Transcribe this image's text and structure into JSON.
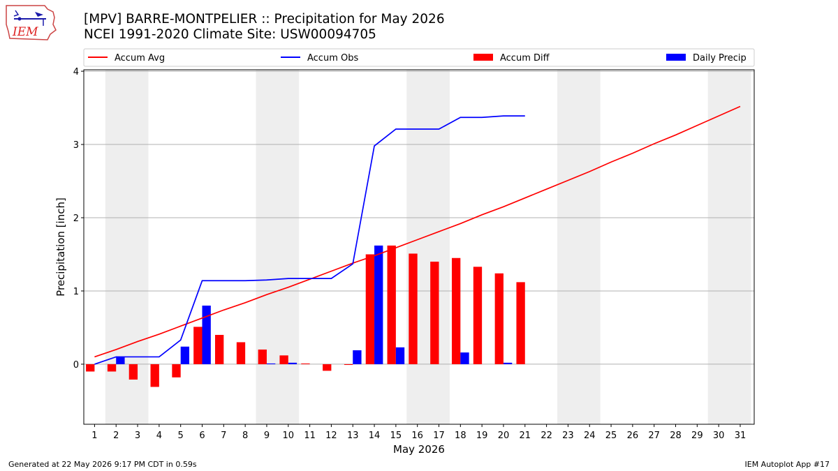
{
  "header": {
    "title": "[MPV] BARRE-MONTPELIER :: Precipitation for May 2026",
    "subtitle": "NCEI 1991-2020 Climate Site: USW00094705"
  },
  "logo": {
    "text": "IEM",
    "icon": "iem-logo"
  },
  "footer": {
    "left": "Generated at 22 May 2026 9:17 PM CDT in 0.59s",
    "right": "IEM Autoplot App #17"
  },
  "colors": {
    "accum_avg": "#ff0000",
    "accum_obs": "#0000ff",
    "accum_diff": "#ff0000",
    "daily_precip": "#0000ff",
    "weekend_band": "#eeeeee",
    "grid": "#b0b0b0"
  },
  "chart_data": {
    "type": "bar",
    "title": "[MPV] BARRE-MONTPELIER :: Precipitation for May 2026",
    "subtitle": "NCEI 1991-2020 Climate Site: USW00094705",
    "xlabel": "May 2026",
    "ylabel": "Precipitation [inch]",
    "ylim": [
      -0.82,
      4.02
    ],
    "yticks": [
      "0",
      "1",
      "2",
      "3",
      "4"
    ],
    "ytick_values": [
      0,
      1,
      2,
      3,
      4
    ],
    "grid": true,
    "legend_position": "top",
    "weekend_bands": [
      [
        2,
        3
      ],
      [
        9,
        10
      ],
      [
        16,
        17
      ],
      [
        23,
        24
      ],
      [
        30,
        31
      ]
    ],
    "categories": [
      "1",
      "2",
      "3",
      "4",
      "5",
      "6",
      "7",
      "8",
      "9",
      "10",
      "11",
      "12",
      "13",
      "14",
      "15",
      "16",
      "17",
      "18",
      "19",
      "20",
      "21",
      "22",
      "23",
      "24",
      "25",
      "26",
      "27",
      "28",
      "29",
      "30",
      "31"
    ],
    "series": [
      {
        "name": "Accum Avg",
        "kind": "line",
        "values": [
          0.1,
          0.2,
          0.31,
          0.41,
          0.52,
          0.63,
          0.74,
          0.84,
          0.95,
          1.05,
          1.16,
          1.27,
          1.38,
          1.48,
          1.59,
          1.7,
          1.81,
          1.92,
          2.04,
          2.15,
          2.27,
          2.39,
          2.51,
          2.63,
          2.76,
          2.88,
          3.01,
          3.13,
          3.26,
          3.39,
          3.52
        ]
      },
      {
        "name": "Accum Obs",
        "kind": "line",
        "values": [
          0.0,
          0.1,
          0.1,
          0.1,
          0.33,
          1.14,
          1.14,
          1.14,
          1.15,
          1.17,
          1.17,
          1.17,
          1.37,
          2.98,
          3.21,
          3.21,
          3.21,
          3.37,
          3.37,
          3.39,
          3.39,
          null,
          null,
          null,
          null,
          null,
          null,
          null,
          null,
          null,
          null
        ]
      },
      {
        "name": "Accum Diff",
        "kind": "bar",
        "values": [
          -0.1,
          -0.1,
          -0.21,
          -0.31,
          -0.18,
          0.51,
          0.4,
          0.3,
          0.2,
          0.12,
          0.01,
          -0.09,
          -0.01,
          1.5,
          1.62,
          1.51,
          1.4,
          1.45,
          1.33,
          1.24,
          1.12,
          null,
          null,
          null,
          null,
          null,
          null,
          null,
          null,
          null,
          null
        ]
      },
      {
        "name": "Daily Precip",
        "kind": "bar",
        "values": [
          0.0,
          0.1,
          0.0,
          0.0,
          0.24,
          0.8,
          0.0,
          0.0,
          0.01,
          0.02,
          0.0,
          0.0,
          0.19,
          1.62,
          0.23,
          0.0,
          0.0,
          0.16,
          0.0,
          0.02,
          0.0,
          null,
          null,
          null,
          null,
          null,
          null,
          null,
          null,
          null,
          null
        ]
      }
    ]
  }
}
